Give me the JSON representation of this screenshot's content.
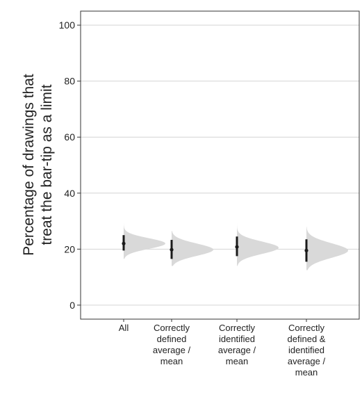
{
  "chart_data": {
    "type": "half-violin with point and interval",
    "ylabel": [
      "Percentage of drawings that",
      "treat the bar-tip as a limit"
    ],
    "xlabel": "",
    "ylim": [
      -5,
      105
    ],
    "yticks": [
      0,
      20,
      40,
      60,
      80,
      100
    ],
    "grid": true,
    "categories": [
      [
        "All"
      ],
      [
        "Correctly",
        "defined",
        "average /",
        "mean"
      ],
      [
        "Correctly",
        "identified",
        "average /",
        "mean"
      ],
      [
        "Correctly",
        "defined &",
        "identified",
        "average /",
        "mean"
      ]
    ],
    "series": [
      {
        "point": 22.0,
        "interval": [
          19.5,
          25.0
        ],
        "dist_mean": 22.0,
        "dist_sd": 1.9,
        "dist_range": [
          16.5,
          30.5
        ]
      },
      {
        "point": 19.8,
        "interval": [
          16.5,
          23.3
        ],
        "dist_mean": 19.8,
        "dist_sd": 2.2,
        "dist_range": [
          14.0,
          26.5
        ]
      },
      {
        "point": 20.8,
        "interval": [
          17.5,
          24.5
        ],
        "dist_mean": 20.5,
        "dist_sd": 2.2,
        "dist_range": [
          14.0,
          30.0
        ]
      },
      {
        "point": 19.5,
        "interval": [
          15.5,
          23.5
        ],
        "dist_mean": 19.5,
        "dist_sd": 2.6,
        "dist_range": [
          12.5,
          28.0
        ]
      }
    ],
    "colors": {
      "distribution": "#d9d9d9",
      "point": "#1a1a1a",
      "grid": "#d4d4d4",
      "frame": "#333333"
    }
  }
}
